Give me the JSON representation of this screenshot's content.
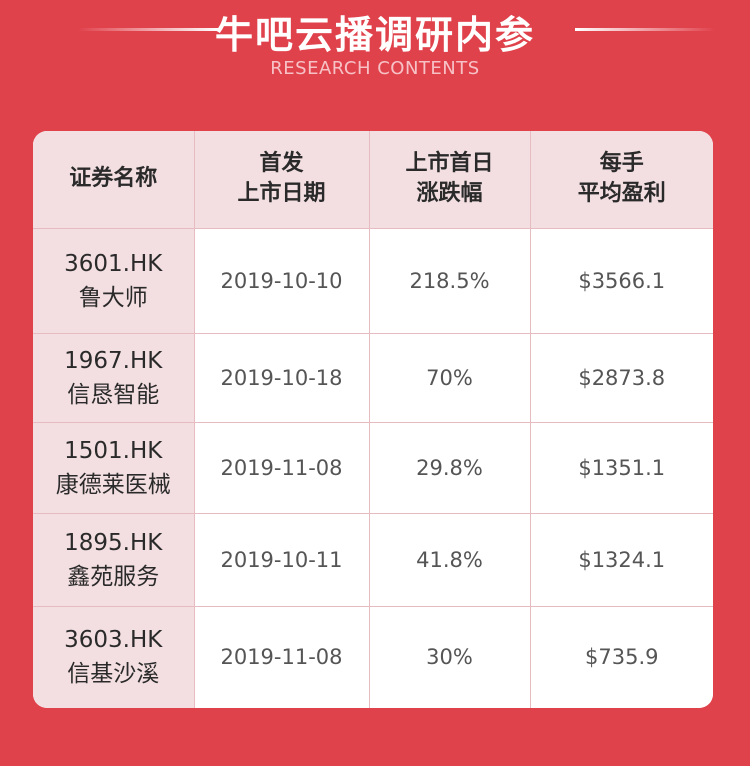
{
  "header": {
    "title": "牛吧云播调研内参",
    "subtitle": "RESEARCH CONTENTS"
  },
  "colors": {
    "background": "#e0424c",
    "header_cell": "#f3dfe1",
    "card": "#ffffff"
  },
  "table": {
    "columns": [
      "证券名称",
      "首发\n上市日期",
      "上市首日\n涨跌幅",
      "每手\n平均盈利"
    ],
    "rows": [
      {
        "code": "3601.HK",
        "name": "鲁大师",
        "date": "2019-10-10",
        "change": "218.5%",
        "profit": "$3566.1"
      },
      {
        "code": "1967.HK",
        "name": "信恳智能",
        "date": "2019-10-18",
        "change": "70%",
        "profit": "$2873.8"
      },
      {
        "code": "1501.HK",
        "name": "康德莱医械",
        "date": "2019-11-08",
        "change": "29.8%",
        "profit": "$1351.1"
      },
      {
        "code": "1895.HK",
        "name": "鑫苑服务",
        "date": "2019-10-11",
        "change": "41.8%",
        "profit": "$1324.1"
      },
      {
        "code": "3603.HK",
        "name": "信基沙溪",
        "date": "2019-11-08",
        "change": "30%",
        "profit": "$735.9"
      }
    ]
  }
}
